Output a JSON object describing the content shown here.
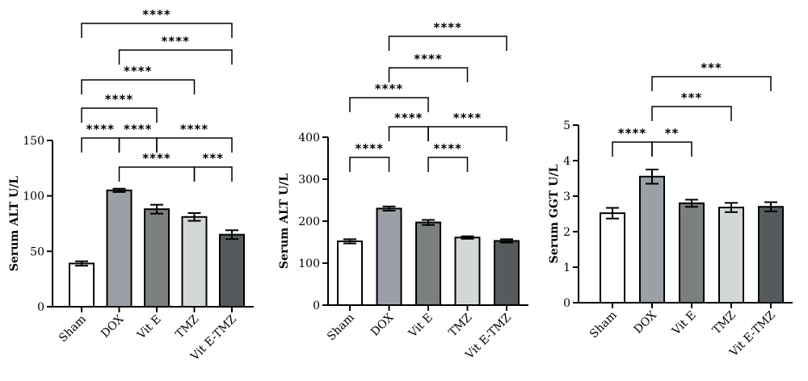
{
  "chart_data": [
    {
      "type": "bar",
      "ylabel": "Serum ALT U/L",
      "categories": [
        "Sham",
        "DOX",
        "Vit E",
        "TMZ",
        "Vit E-TMZ"
      ],
      "values": [
        39,
        105,
        88,
        81,
        65
      ],
      "errors": [
        2,
        1.5,
        4,
        3.5,
        4
      ],
      "ylim": [
        0,
        150
      ],
      "yticks": [
        "0",
        "50",
        "100",
        "150"
      ],
      "comparisons": [
        {
          "from": 0,
          "to": 4,
          "label": "****"
        },
        {
          "from": 1,
          "to": 4,
          "label": "****"
        },
        {
          "from": 0,
          "to": 3,
          "label": "****"
        },
        {
          "from": 0,
          "to": 2,
          "label": "****"
        },
        {
          "from": 1,
          "to": 2,
          "label": "****"
        },
        {
          "from": 2,
          "to": 4,
          "label": "****"
        },
        {
          "from": 0,
          "to": 1,
          "label": "****"
        },
        {
          "from": 1,
          "to": 3,
          "label": "****"
        },
        {
          "from": 3,
          "to": 4,
          "label": "***"
        }
      ]
    },
    {
      "type": "bar",
      "ylabel": "Serum ALT U/L",
      "categories": [
        "Sham",
        "DOX",
        "Vit E",
        "TMZ",
        "Vit E-TMZ"
      ],
      "values": [
        152,
        230,
        197,
        161,
        153
      ],
      "errors": [
        5,
        5,
        6,
        3,
        4
      ],
      "ylim": [
        0,
        400
      ],
      "yticks": [
        "0",
        "100",
        "200",
        "300",
        "400"
      ],
      "comparisons": [
        {
          "from": 1,
          "to": 4,
          "label": "****"
        },
        {
          "from": 1,
          "to": 3,
          "label": "****"
        },
        {
          "from": 0,
          "to": 2,
          "label": "****"
        },
        {
          "from": 1,
          "to": 2,
          "label": "****"
        },
        {
          "from": 2,
          "to": 4,
          "label": "****"
        },
        {
          "from": 0,
          "to": 1,
          "label": "****"
        },
        {
          "from": 2,
          "to": 3,
          "label": "****"
        }
      ]
    },
    {
      "type": "bar",
      "ylabel": "Serum GGT U/L",
      "categories": [
        "Sham",
        "DOX",
        "Vit E",
        "TMZ",
        "Vit E-TMZ"
      ],
      "values": [
        2.52,
        3.55,
        2.8,
        2.68,
        2.7
      ],
      "errors": [
        0.15,
        0.2,
        0.1,
        0.13,
        0.13
      ],
      "ylim": [
        0,
        5
      ],
      "yticks": [
        "0",
        "1",
        "2",
        "3",
        "4",
        "5"
      ],
      "comparisons": [
        {
          "from": 1,
          "to": 4,
          "label": "***"
        },
        {
          "from": 1,
          "to": 3,
          "label": "***"
        },
        {
          "from": 0,
          "to": 1,
          "label": "****"
        },
        {
          "from": 1,
          "to": 2,
          "label": "**"
        }
      ]
    }
  ],
  "colors": {
    "bars": [
      "#ffffff",
      "#9aa0a6",
      "#7b807f",
      "#d3d8d6",
      "#555b5c"
    ]
  }
}
